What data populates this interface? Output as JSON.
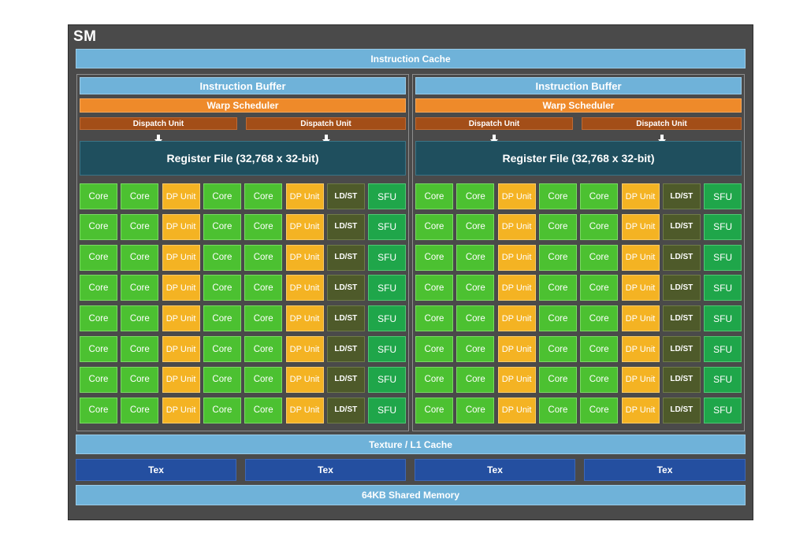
{
  "sm": {
    "title": "SM",
    "instruction_cache": "Instruction Cache",
    "texture_l1_cache": "Texture / L1 Cache",
    "tex_units": [
      "Tex",
      "Tex",
      "Tex",
      "Tex"
    ],
    "shared_memory": "64KB Shared Memory"
  },
  "partition": {
    "instruction_buffer": "Instruction Buffer",
    "warp_scheduler": "Warp Scheduler",
    "dispatch_units": [
      "Dispatch Unit",
      "Dispatch Unit"
    ],
    "register_file": "Register File (32,768 x 32-bit)",
    "unit_row": [
      {
        "type": "core",
        "label": "Core"
      },
      {
        "type": "core",
        "label": "Core"
      },
      {
        "type": "dp",
        "label": "DP Unit"
      },
      {
        "type": "core",
        "label": "Core"
      },
      {
        "type": "core",
        "label": "Core"
      },
      {
        "type": "dp",
        "label": "DP Unit"
      },
      {
        "type": "ldst",
        "label": "LD/ST"
      },
      {
        "type": "sfu",
        "label": "SFU"
      }
    ],
    "rows": 8
  },
  "colors": {
    "sm_background": "#4a4a4a",
    "cache_blue": "#6fb2d9",
    "warp_scheduler_orange": "#ee8a2a",
    "dispatch_brown": "#a34e18",
    "register_file_teal": "#1f4f5e",
    "core_green": "#4cc131",
    "dp_yellow": "#f4b323",
    "ldst_olive": "#4e5a2a",
    "sfu_green": "#1fa64a",
    "tex_navy": "#244fa0"
  }
}
